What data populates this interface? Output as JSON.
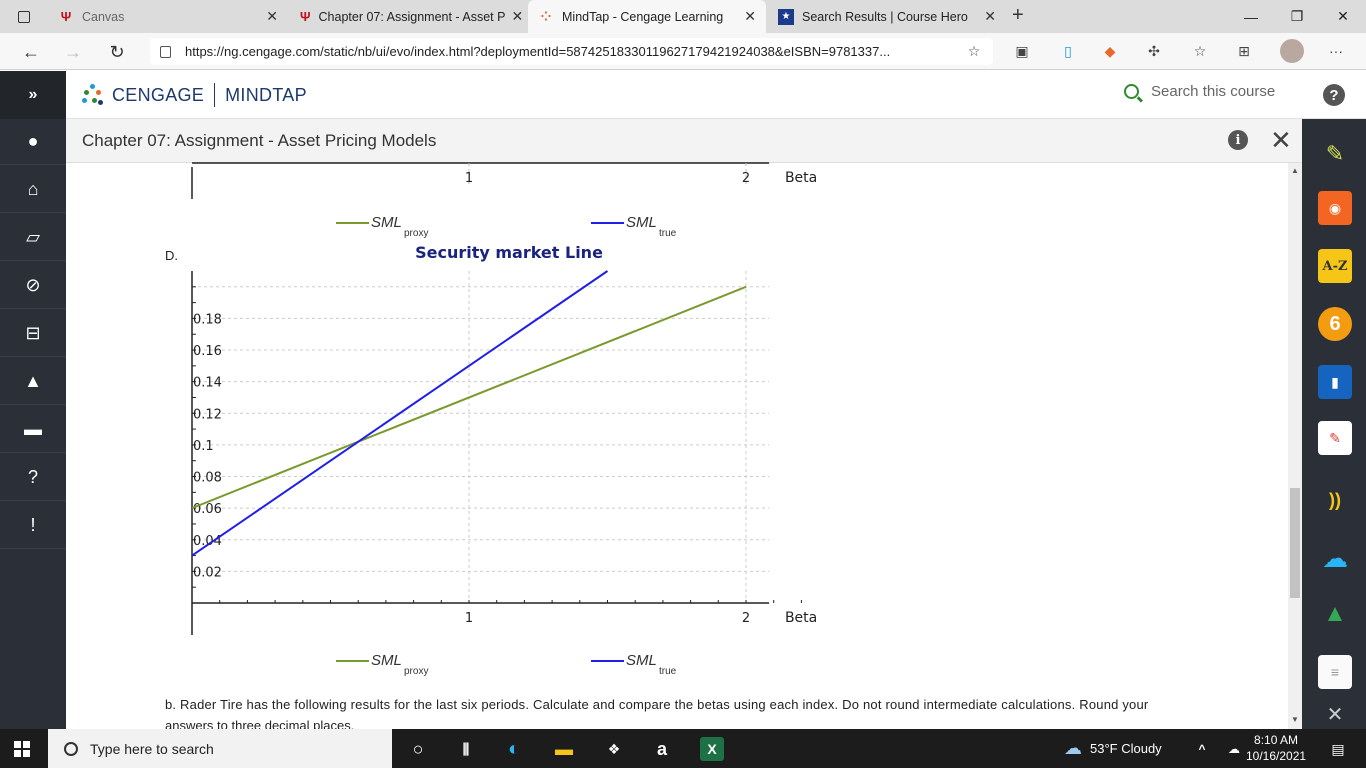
{
  "browser": {
    "tabs": [
      {
        "label": "Canvas",
        "icon": "canvas-icon"
      },
      {
        "label": "Chapter 07: Assignment - Asset P",
        "icon": "iu-trident-icon"
      },
      {
        "label": "MindTap - Cengage Learning",
        "icon": "cengage-icon"
      },
      {
        "label": "Search Results | Course Hero",
        "icon": "course-hero-icon"
      }
    ],
    "close_glyph": "✕",
    "new_tab_glyph": "+",
    "url": "https://ng.cengage.com/static/nb/ui/evo/index.html?deploymentId=58742518330119627179421924038&eISBN=9781337..."
  },
  "app": {
    "brand_left": "CENGAGE",
    "brand_right": "MINDTAP",
    "search_placeholder": "Search this course",
    "page_title": "Chapter 07: Assignment - Asset Pricing Models"
  },
  "colors": {
    "proxy_line": "#7a9a2e",
    "true_line": "#1f1fe6",
    "chart_title": "#1a237e",
    "sidebar_bg": "#2b3038"
  },
  "top_axis": {
    "ticks": [
      "1",
      "2"
    ],
    "xlabel": "Beta",
    "legend": [
      {
        "name": "SML",
        "sub": "proxy"
      },
      {
        "name": "SML",
        "sub": "true"
      }
    ]
  },
  "option_label": "D.",
  "chart_data": {
    "type": "line",
    "title": "Security market Line",
    "xlabel": "Beta",
    "ylabel": "",
    "xlim": [
      0,
      2.3
    ],
    "ylim": [
      0,
      0.21
    ],
    "xticks": [
      "1",
      "2"
    ],
    "yticks": [
      "0.02",
      "0.04",
      "0.06",
      "0.08",
      "0.1",
      "0.12",
      "0.14",
      "0.16",
      "0.18"
    ],
    "grid": true,
    "legend_position": "bottom",
    "series": [
      {
        "name": "SML",
        "sub": "proxy",
        "x": [
          0,
          2
        ],
        "y": [
          0.06,
          0.2
        ]
      },
      {
        "name": "SML",
        "sub": "true",
        "x": [
          0,
          1.5
        ],
        "y": [
          0.03,
          0.21
        ]
      }
    ]
  },
  "question": {
    "text": "b. Rader Tire has the following results for the last six periods. Calculate and compare the betas using each index. Do not round intermediate calculations. Round your",
    "text2": "answers to three decimal places."
  },
  "taskbar": {
    "search_placeholder": "Type here to search",
    "weather": "53°F  Cloudy",
    "time": "8:10 AM",
    "date": "10/16/2021"
  }
}
